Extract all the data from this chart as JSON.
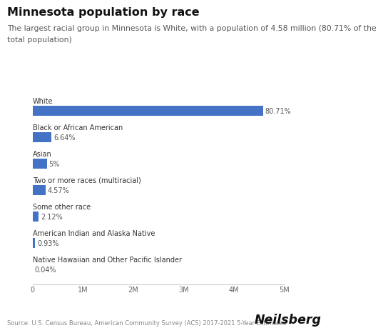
{
  "title": "Minnesota population by race",
  "subtitle_line1": "The largest racial group in Minnesota is White, with a population of 4.58 million (80.71% of the",
  "subtitle_line2": "total population)",
  "categories": [
    "White",
    "Black or African American",
    "Asian",
    "Two or more races (multiracial)",
    "Some other race",
    "American Indian and Alaska Native",
    "Native Hawaiian and Other Pacific Islander"
  ],
  "values": [
    4580000,
    376480,
    283500,
    259210,
    120260,
    52730,
    2270
  ],
  "percentages": [
    "80.71%",
    "6.64%",
    "5%",
    "4.57%",
    "2.12%",
    "0.93%",
    "0.04%"
  ],
  "bar_color": "#4472C4",
  "background_color": "#ffffff",
  "xlim": [
    0,
    5000000
  ],
  "xticks": [
    0,
    1000000,
    2000000,
    3000000,
    4000000,
    5000000
  ],
  "xtick_labels": [
    "0",
    "1M",
    "2M",
    "3M",
    "4M",
    "5M"
  ],
  "source_text": "Source: U.S. Census Bureau, American Community Survey (ACS) 2017-2021 5-Year Estimates",
  "brand_text": "Neilsberg",
  "title_fontsize": 11.5,
  "subtitle_fontsize": 7.8,
  "category_fontsize": 7.0,
  "pct_fontsize": 7.0,
  "tick_fontsize": 7.0,
  "source_fontsize": 6.0,
  "brand_fontsize": 12.5,
  "title_color": "#111111",
  "subtitle_color": "#555555",
  "category_color": "#333333",
  "pct_color": "#555555",
  "tick_color": "#666666",
  "source_color": "#888888",
  "brand_color": "#111111"
}
